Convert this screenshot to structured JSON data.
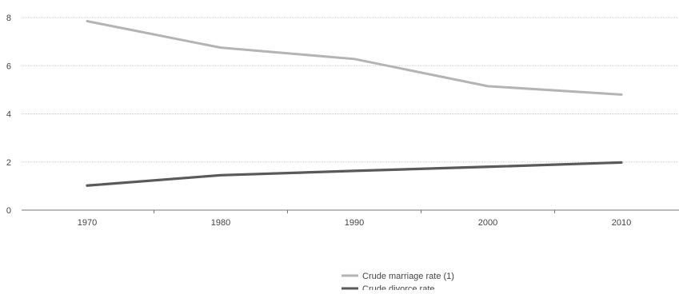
{
  "chart_data": {
    "type": "line",
    "x": [
      1970,
      1980,
      1990,
      2000,
      2010
    ],
    "categories": [
      "1970",
      "1980",
      "1990",
      "2000",
      "2010"
    ],
    "ylim": [
      0,
      8
    ],
    "yticks": [
      "0",
      "2",
      "4",
      "6",
      "8"
    ],
    "grid": true,
    "legend_position": "bottom-center",
    "series": [
      {
        "name": "Crude marriage rate (1)",
        "values": [
          7.85,
          6.75,
          6.28,
          5.15,
          4.8
        ],
        "color": "#b4b4b4"
      },
      {
        "name": "Crude divorce rate",
        "values": [
          1.02,
          1.45,
          1.63,
          1.8,
          1.98
        ],
        "color": "#5a5a5a"
      }
    ]
  }
}
